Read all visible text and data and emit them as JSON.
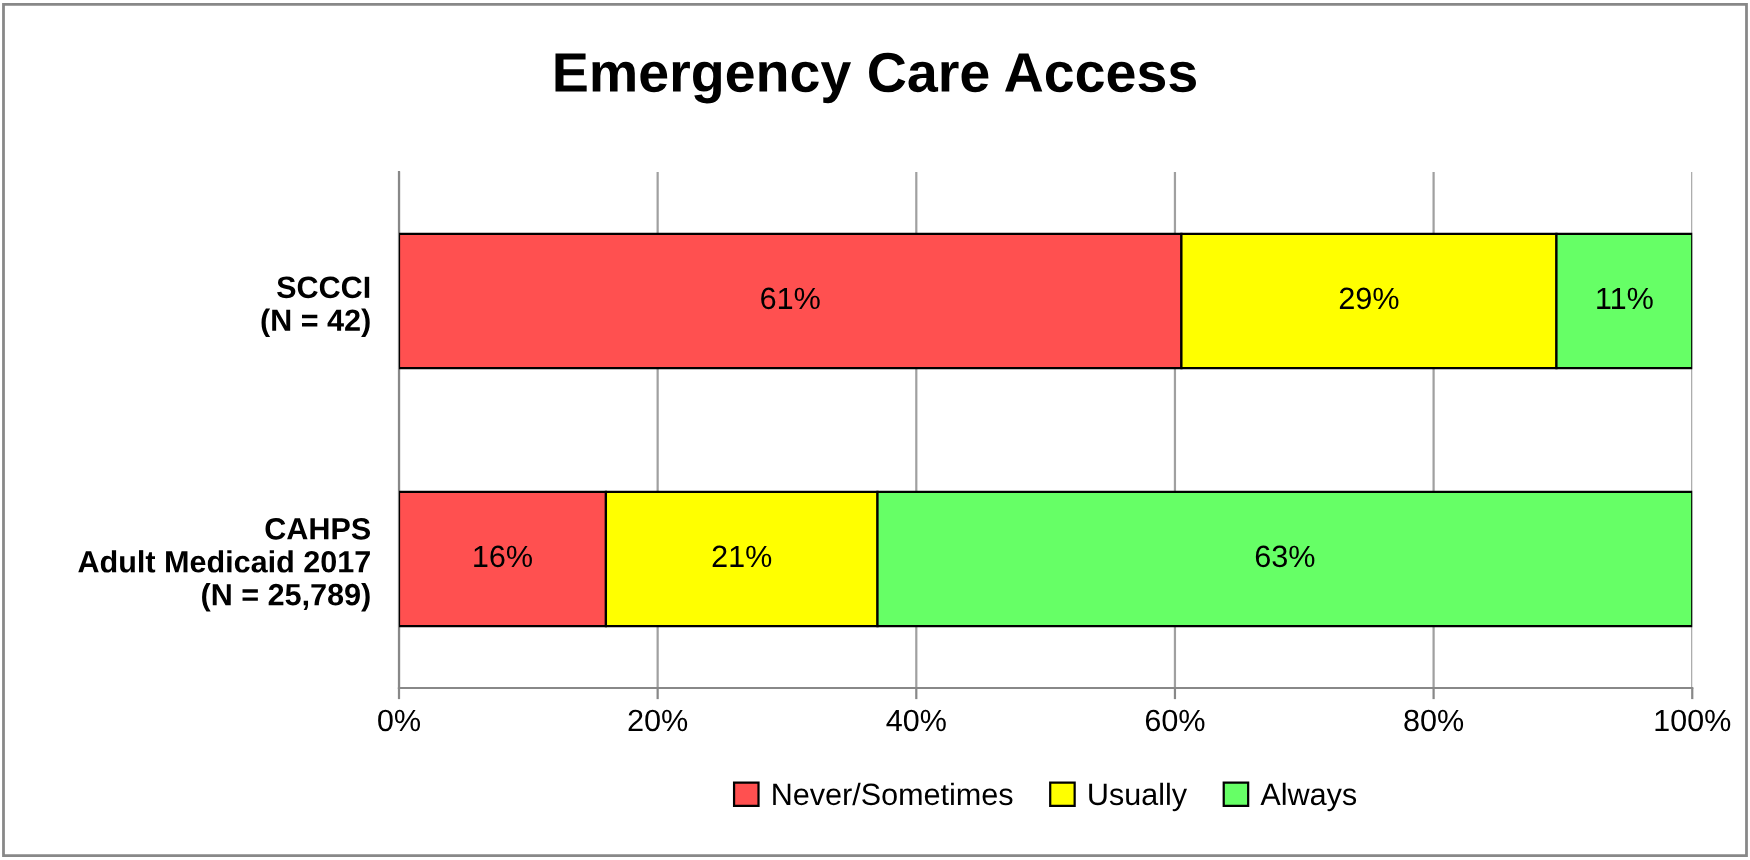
{
  "chart_data": {
    "type": "bar",
    "title": "Emergency Care Access",
    "orientation": "horizontal",
    "stacked": true,
    "categories": [
      "SCCCI\n(N = 42)",
      "CAHPS\nAdult Medicaid 2017\n(N = 25,789)"
    ],
    "series": [
      {
        "name": "Never/Sometimes",
        "color": "#ff5050",
        "values": [
          60.5,
          16
        ],
        "value_labels": [
          "61%",
          "16%"
        ]
      },
      {
        "name": "Usually",
        "color": "#ffff00",
        "values": [
          29,
          21
        ],
        "value_labels": [
          "29%",
          "21%"
        ]
      },
      {
        "name": "Always",
        "color": "#66ff66",
        "values": [
          10.5,
          63
        ],
        "value_labels": [
          "11%",
          "63%"
        ]
      }
    ],
    "xlim": [
      0,
      100
    ],
    "xticks": [
      {
        "value": 0,
        "label": "0%"
      },
      {
        "value": 20,
        "label": "20%"
      },
      {
        "value": 40,
        "label": "40%"
      },
      {
        "value": 60,
        "label": "60%"
      },
      {
        "value": 80,
        "label": "80%"
      },
      {
        "value": 100,
        "label": "100%"
      }
    ],
    "grid": "x",
    "legend": "bottom"
  }
}
